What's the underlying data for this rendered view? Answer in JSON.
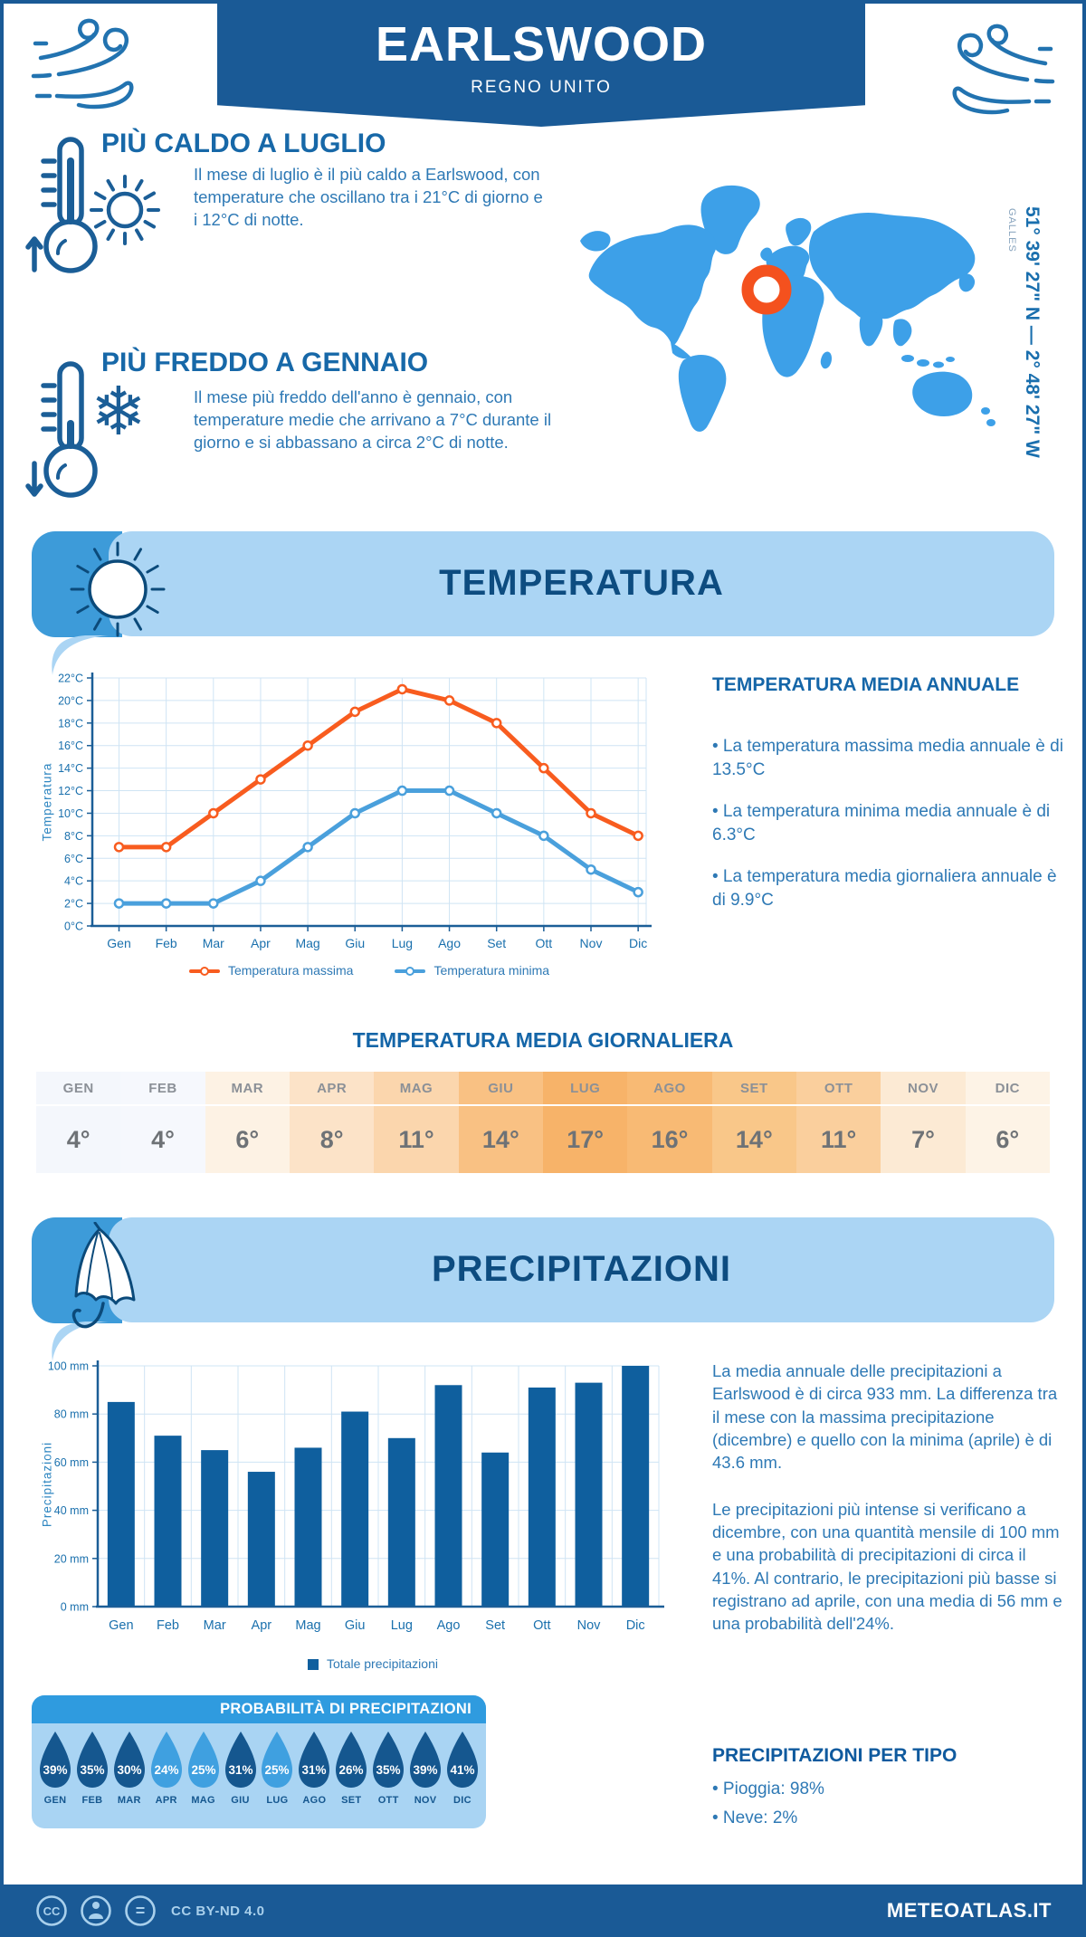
{
  "page": {
    "title": "EARLSWOOD",
    "subtitle": "REGNO UNITO"
  },
  "highlights": {
    "warm": {
      "title": "PIÙ CALDO A LUGLIO",
      "text": "Il mese di luglio è il più caldo a Earlswood, con temperature che oscillano tra i 21°C di giorno e i 12°C di notte."
    },
    "cold": {
      "title": "PIÙ FREDDO A GENNAIO",
      "text": "Il mese più freddo dell'anno è gennaio, con temperature medie che arrivano a 7°C durante il giorno e si abbassano a circa 2°C di notte."
    }
  },
  "map": {
    "coordinates": "51° 39' 27\" N — 2° 48' 27\" W",
    "region": "GALLES"
  },
  "sections": {
    "temperature": {
      "title": "TEMPERATURA"
    },
    "precipitation": {
      "title": "PRECIPITAZIONI"
    }
  },
  "chart_data": [
    {
      "type": "line",
      "x": [
        "Gen",
        "Feb",
        "Mar",
        "Apr",
        "Mag",
        "Giu",
        "Lug",
        "Ago",
        "Set",
        "Ott",
        "Nov",
        "Dic"
      ],
      "series": [
        {
          "name": "Temperatura massima",
          "color": "#f85c1f",
          "values": [
            7,
            7,
            10,
            13,
            16,
            19,
            21,
            20,
            18,
            14,
            10,
            8
          ]
        },
        {
          "name": "Temperatura minima",
          "color": "#4aa0dc",
          "values": [
            2,
            2,
            2,
            4,
            7,
            10,
            12,
            12,
            10,
            8,
            5,
            3
          ]
        }
      ],
      "ylabel": "Temperatura",
      "xlabel": "",
      "ylim": [
        0,
        22
      ],
      "ytick_step": 2,
      "ytick_suffix": "°C",
      "grid": true,
      "legend_position": "bottom"
    },
    {
      "type": "bar",
      "categories": [
        "Gen",
        "Feb",
        "Mar",
        "Apr",
        "Mag",
        "Giu",
        "Lug",
        "Ago",
        "Set",
        "Ott",
        "Nov",
        "Dic"
      ],
      "values": [
        85,
        71,
        65,
        56,
        66,
        81,
        70,
        92,
        64,
        91,
        93,
        100
      ],
      "series_name": "Totale precipitazioni",
      "color": "#0f5f9e",
      "ylabel": "Precipitazioni",
      "xlabel": "",
      "ylim": [
        0,
        100
      ],
      "ytick_step": 20,
      "ytick_suffix": " mm",
      "grid": true,
      "legend_position": "bottom"
    }
  ],
  "annual": {
    "title": "TEMPERATURA MEDIA ANNUALE",
    "bullets": [
      "• La temperatura massima media annuale è di 13.5°C",
      "• La temperatura minima media annuale è di 6.3°C",
      "• La temperatura media giornaliera annuale è di 9.9°C"
    ]
  },
  "daily_table": {
    "title": "TEMPERATURA MEDIA GIORNALIERA",
    "months": [
      "GEN",
      "FEB",
      "MAR",
      "APR",
      "MAG",
      "GIU",
      "LUG",
      "AGO",
      "SET",
      "OTT",
      "NOV",
      "DIC"
    ],
    "values": [
      "4°",
      "4°",
      "6°",
      "8°",
      "11°",
      "14°",
      "17°",
      "16°",
      "14°",
      "11°",
      "7°",
      "6°"
    ],
    "cell_colors": [
      "#f4f7fc",
      "#f6f8fd",
      "#fdf2e4",
      "#fce3c8",
      "#fbd6ad",
      "#f9c183",
      "#f7b369",
      "#f8ba74",
      "#f9c789",
      "#facf9d",
      "#fcead4",
      "#fdf3e6"
    ]
  },
  "precip_text": [
    "La media annuale delle precipitazioni a Earlswood è di circa 933 mm. La differenza tra il mese con la massima precipitazione (dicembre) e quello con la minima (aprile) è di 43.6 mm.",
    "Le precipitazioni più intense si verificano a dicembre, con una quantità mensile di 100 mm e una probabilità di precipitazioni di circa il 41%. Al contrario, le precipitazioni più basse si registrano ad aprile, con una media di 56 mm e una probabilità dell'24%."
  ],
  "probability": {
    "title": "PROBABILITÀ DI PRECIPITAZIONI",
    "months": [
      "GEN",
      "FEB",
      "MAR",
      "APR",
      "MAG",
      "GIU",
      "LUG",
      "AGO",
      "SET",
      "OTT",
      "NOV",
      "DIC"
    ],
    "values": [
      39,
      35,
      30,
      24,
      25,
      31,
      25,
      31,
      26,
      35,
      39,
      41
    ],
    "drop_dark": "#15578f",
    "drop_light": "#3fa0e0",
    "light_months": [
      3,
      4,
      6
    ]
  },
  "precip_type": {
    "title": "PRECIPITAZIONI PER TIPO",
    "items": [
      "• Pioggia: 98%",
      "• Neve: 2%"
    ]
  },
  "footer": {
    "license": "CC BY-ND 4.0",
    "brand": "METEOATLAS.IT"
  },
  "icons": {
    "snowflake": "❄"
  },
  "colors": {
    "banner": "#1a5a96",
    "ribbon_light": "#abd5f4",
    "ribbon_cap": "#3d9bd9",
    "map": "#3da0e8",
    "marker": "#f4511e",
    "grid": "#cfe4f4",
    "axis": "#1b5e97"
  }
}
